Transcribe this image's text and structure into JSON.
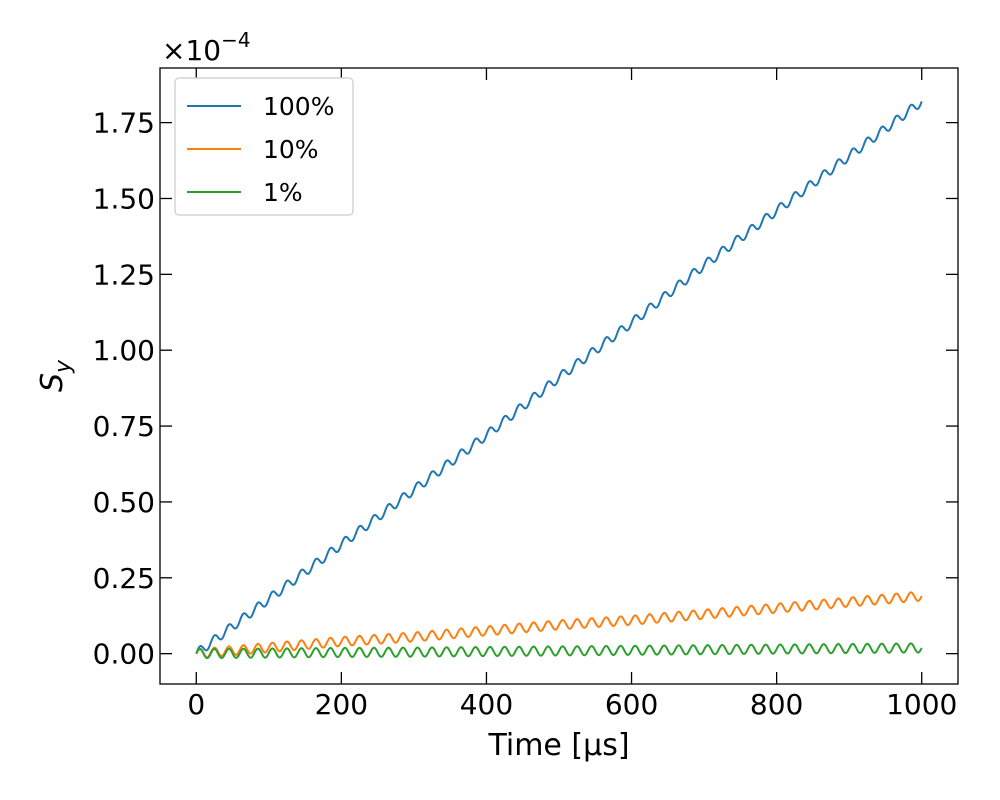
{
  "chart_data": {
    "type": "line",
    "xlabel": "Time [μs]",
    "ylabel": "S_y",
    "y_scale_factor_label": "×10^−4",
    "xlim": [
      -50,
      1050
    ],
    "ylim": [
      -0.1,
      1.93
    ],
    "x_ticks": [
      "0",
      "200",
      "400",
      "600",
      "800",
      "1000"
    ],
    "x_tick_values": [
      0,
      200,
      400,
      600,
      800,
      1000
    ],
    "y_ticks": [
      "0.00",
      "0.25",
      "0.50",
      "0.75",
      "1.00",
      "1.25",
      "1.50",
      "1.75"
    ],
    "y_tick_values": [
      0,
      0.25,
      0.5,
      0.75,
      1.0,
      1.25,
      1.5,
      1.75
    ],
    "legend_position": "top-left",
    "grid": false,
    "series": [
      {
        "name": "100%",
        "color": "#1f77b4",
        "x": [
          0,
          100,
          200,
          300,
          400,
          500,
          600,
          700,
          800,
          900,
          1000
        ],
        "y": [
          0,
          0.18,
          0.36,
          0.54,
          0.72,
          0.91,
          1.09,
          1.28,
          1.46,
          1.64,
          1.82
        ],
        "oscillation_amplitude": 0.015,
        "oscillation_period": 20
      },
      {
        "name": "10%",
        "color": "#ff7f0e",
        "x": [
          0,
          100,
          200,
          300,
          400,
          500,
          600,
          700,
          800,
          900,
          1000
        ],
        "y": [
          0,
          0.02,
          0.04,
          0.055,
          0.075,
          0.095,
          0.11,
          0.13,
          0.15,
          0.17,
          0.19
        ],
        "oscillation_amplitude": 0.015,
        "oscillation_period": 20
      },
      {
        "name": "1%",
        "color": "#2ca02c",
        "x": [
          0,
          100,
          200,
          300,
          400,
          500,
          600,
          700,
          800,
          900,
          1000
        ],
        "y": [
          0,
          0.002,
          0.004,
          0.005,
          0.007,
          0.009,
          0.011,
          0.013,
          0.015,
          0.017,
          0.019
        ],
        "oscillation_amplitude": 0.015,
        "oscillation_period": 20
      }
    ]
  }
}
